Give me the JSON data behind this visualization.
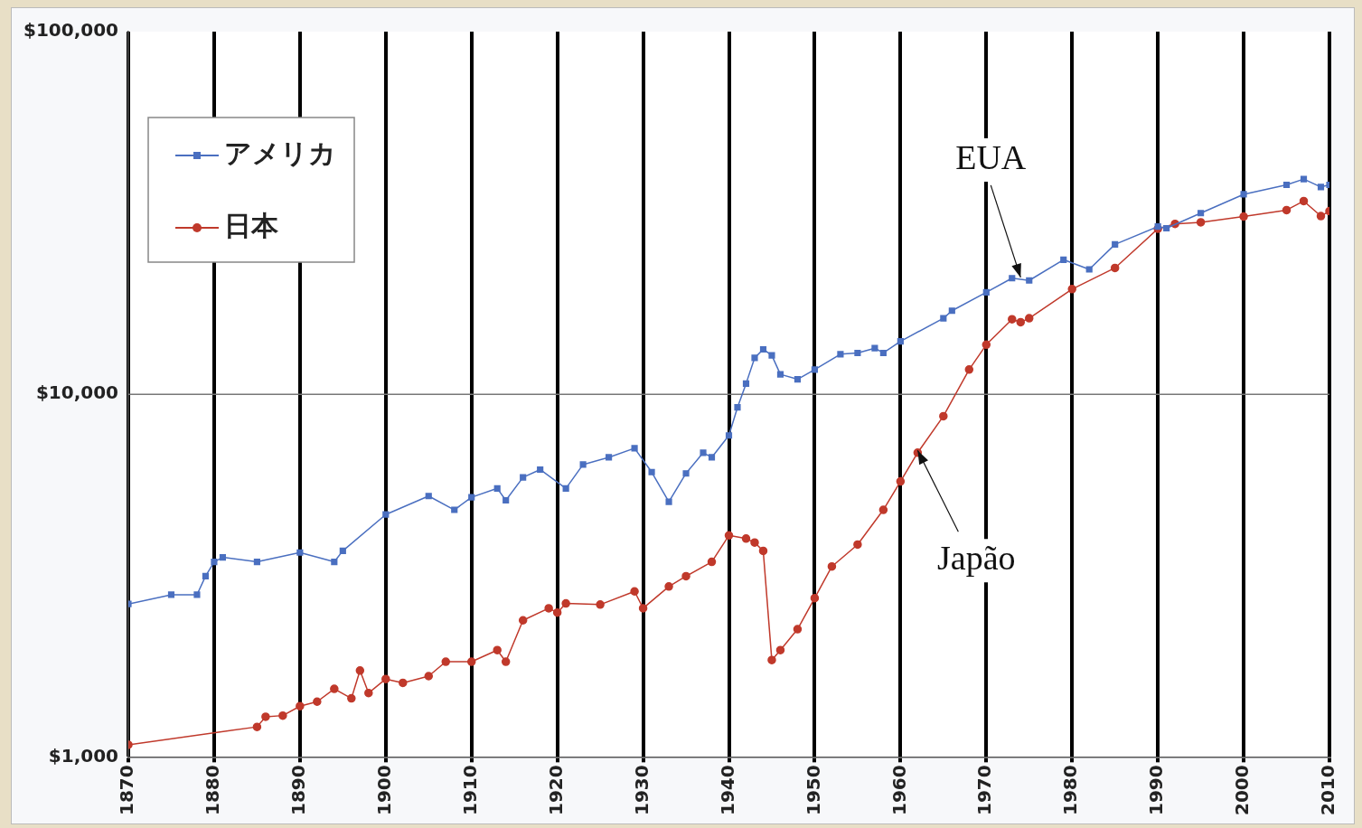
{
  "chart_data": {
    "type": "line",
    "log": "y",
    "grid": "x",
    "ref_lines": [
      {
        "axis": "y",
        "value": 10000,
        "color": "#777777",
        "line_style": "solid"
      }
    ],
    "legend": "top left",
    "xlim": [
      1870,
      2010
    ],
    "xticks": [
      1870,
      1880,
      1890,
      1900,
      1910,
      1920,
      1930,
      1940,
      1950,
      1960,
      1970,
      1980,
      1990,
      2000,
      2010
    ],
    "ylim": [
      1000,
      100000
    ],
    "yticks": [
      {
        "value": 1000,
        "label": "$1,000"
      },
      {
        "value": 10000,
        "label": "$10,000"
      },
      {
        "value": 100000,
        "label": "$100,000"
      }
    ],
    "series": [
      {
        "name": "アメリカ",
        "color": "#4a6fc0",
        "marker": "square",
        "x": [
          1870,
          1875,
          1878,
          1879,
          1880,
          1881,
          1885,
          1890,
          1894,
          1895,
          1900,
          1905,
          1908,
          1910,
          1913,
          1914,
          1916,
          1918,
          1921,
          1923,
          1926,
          1929,
          1931,
          1933,
          1935,
          1937,
          1938,
          1940,
          1941,
          1942,
          1943,
          1944,
          1945,
          1946,
          1948,
          1950,
          1953,
          1955,
          1957,
          1958,
          1960,
          1965,
          1966,
          1970,
          1973,
          1975,
          1979,
          1982,
          1985,
          1990,
          1991,
          1995,
          2000,
          2005,
          2007,
          2009,
          2010
        ],
        "values": [
          2640,
          2800,
          2800,
          3150,
          3450,
          3550,
          3450,
          3660,
          3450,
          3700,
          4660,
          5240,
          4800,
          5200,
          5500,
          5100,
          5900,
          6200,
          5500,
          6400,
          6700,
          7100,
          6100,
          5050,
          6050,
          6900,
          6700,
          7700,
          9200,
          10700,
          12600,
          13300,
          12800,
          11350,
          11000,
          11700,
          12900,
          13000,
          13400,
          13000,
          14000,
          16200,
          17000,
          19100,
          20900,
          20600,
          23500,
          22100,
          25900,
          29000,
          28700,
          31600,
          35600,
          37800,
          39200,
          37300,
          37800
        ]
      },
      {
        "name": "日本",
        "color": "#c0392b",
        "marker": "circle",
        "x": [
          1870,
          1885,
          1886,
          1888,
          1890,
          1892,
          1894,
          1896,
          1897,
          1898,
          1900,
          1902,
          1905,
          1907,
          1910,
          1913,
          1914,
          1916,
          1919,
          1920,
          1921,
          1925,
          1929,
          1930,
          1933,
          1935,
          1938,
          1940,
          1942,
          1943,
          1944,
          1945,
          1946,
          1948,
          1950,
          1952,
          1955,
          1958,
          1960,
          1962,
          1965,
          1968,
          1970,
          1973,
          1974,
          1975,
          1980,
          1985,
          1990,
          1992,
          1995,
          2000,
          2005,
          2007,
          2009,
          2010
        ],
        "values": [
          1080,
          1210,
          1290,
          1300,
          1380,
          1420,
          1540,
          1450,
          1730,
          1500,
          1640,
          1600,
          1670,
          1830,
          1830,
          1970,
          1830,
          2380,
          2570,
          2500,
          2650,
          2630,
          2860,
          2570,
          2950,
          3150,
          3450,
          4080,
          4000,
          3900,
          3700,
          1850,
          1970,
          2250,
          2740,
          3350,
          3850,
          4800,
          5750,
          6900,
          8700,
          11700,
          13700,
          16100,
          15800,
          16200,
          19500,
          22300,
          28600,
          29500,
          29800,
          30900,
          32200,
          34100,
          31000,
          32000
        ]
      }
    ],
    "annotations": [
      {
        "text": "EUA",
        "x": 1974,
        "y": 21000
      },
      {
        "text": "Japão",
        "x": 1962,
        "y": 7000
      }
    ]
  }
}
